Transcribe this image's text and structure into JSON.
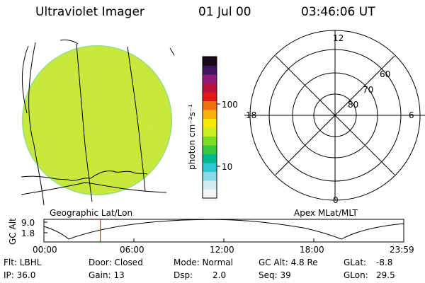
{
  "header": {
    "title": "Ultraviolet Imager",
    "date": "01 Jul 00",
    "time": "03:46:06 UT"
  },
  "colorbar": {
    "unit_label": "photon cm⁻²s⁻¹",
    "ticks": [
      "100",
      "10"
    ],
    "colors": [
      "#f4f4f4",
      "#d4ecf4",
      "#88dce8",
      "#30c8d0",
      "#00b890",
      "#38c840",
      "#80dc20",
      "#c8f020",
      "#f8e808",
      "#f8b010",
      "#f07010",
      "#e01818",
      "#b8103a",
      "#901878",
      "#401460",
      "#180818"
    ]
  },
  "polar": {
    "mlt_labels": [
      "12",
      "18",
      "6",
      "0"
    ],
    "lat_labels": [
      "60",
      "70",
      "80"
    ]
  },
  "panel_labels": {
    "left": "Geographic Lat/Lon",
    "right": "Apex MLat/MLT"
  },
  "gc_plot": {
    "axis_label": "GC Alt",
    "y_ticks": [
      "9.0",
      "1.8"
    ],
    "x_ticks": [
      "00:00",
      "06:00",
      "12:00",
      "18:00",
      "23:59"
    ],
    "marker_time": "03:46"
  },
  "footer": {
    "flt": "Flt: LBHL",
    "ip": "IP: 36.0",
    "door": "Door: Closed",
    "gain": "Gain: 13",
    "mode": "Mode: Normal",
    "dsp_label": "Dsp:",
    "dsp_value": "2.0",
    "gc_alt": "GC Alt: 4.8 Re",
    "seq": "Seq: 39",
    "glat_label": "GLat:",
    "glat_value": "-8.8",
    "glon_label": "GLon:",
    "glon_value": "29.5"
  },
  "colors": {
    "disk_base": "#c8e838",
    "marker": "#e00000"
  }
}
